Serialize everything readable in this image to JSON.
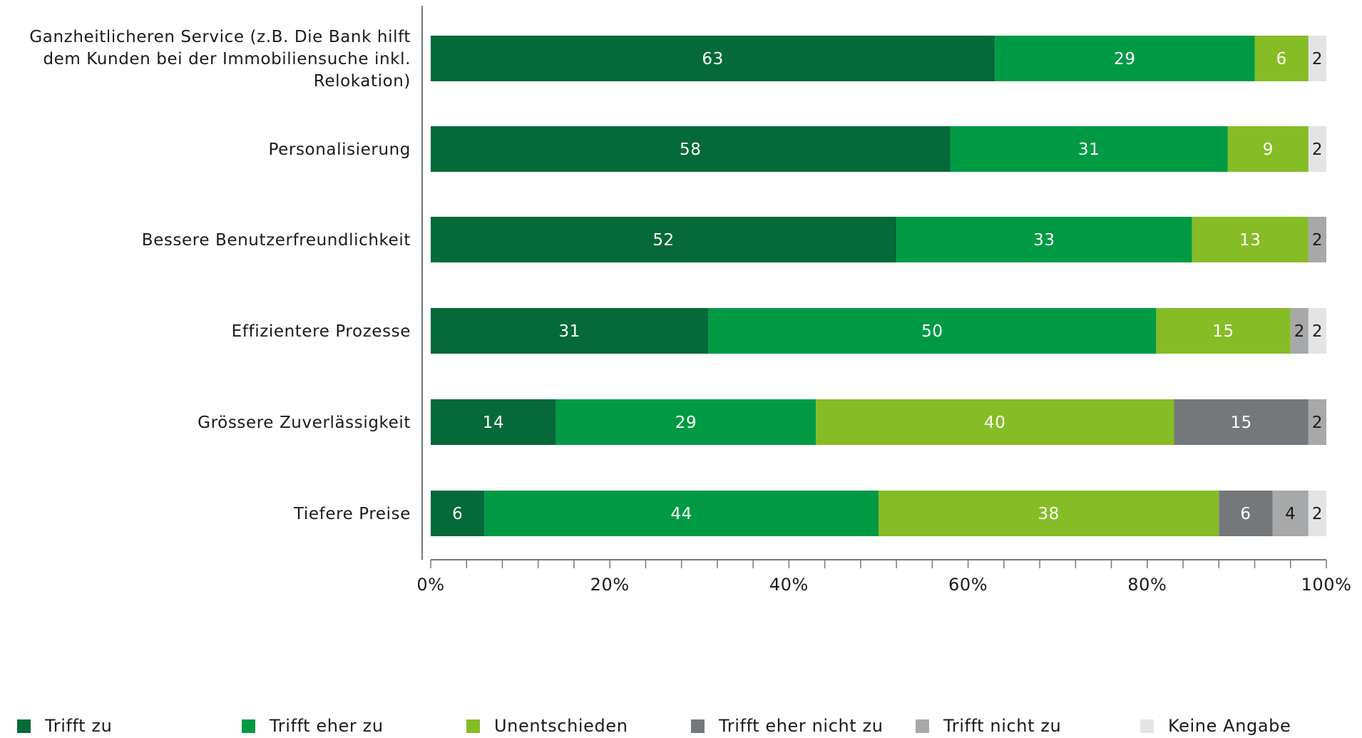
{
  "chart_data": {
    "type": "bar",
    "orientation": "horizontal",
    "stacked": true,
    "categories": [
      [
        "Ganzheitlicheren Service (z.B. Die Bank hilft",
        "dem Kunden bei der Immobiliensuche inkl.",
        "Relokation)"
      ],
      [
        "Personalisierung"
      ],
      [
        "Bessere Benutzerfreundlichkeit"
      ],
      [
        "Effizientere Prozesse"
      ],
      [
        "Grössere Zuverlässigkeit"
      ],
      [
        "Tiefere Preise"
      ]
    ],
    "series": [
      {
        "name": "Trifft zu",
        "color": "#05693a",
        "label_color": "#ffffff",
        "values": [
          63,
          58,
          52,
          31,
          14,
          6
        ]
      },
      {
        "name": "Trifft eher zu",
        "color": "#009a44",
        "label_color": "#ffffff",
        "values": [
          29,
          31,
          33,
          50,
          29,
          44
        ]
      },
      {
        "name": "Unentschieden",
        "color": "#86bc25",
        "label_color": "#ffffff",
        "values": [
          6,
          9,
          13,
          15,
          40,
          38
        ]
      },
      {
        "name": "Trifft eher nicht zu",
        "color": "#75787b",
        "label_color": "#ffffff",
        "values": [
          0,
          0,
          0,
          0,
          15,
          6
        ]
      },
      {
        "name": "Trifft nicht zu",
        "color": "#a7a8aa",
        "label_color": "#1a1a1a",
        "values": [
          0,
          0,
          2,
          2,
          2,
          4
        ]
      },
      {
        "name": "Keine Angabe",
        "color": "#e3e4e6",
        "label_color": "#1a1a1a",
        "values": [
          2,
          2,
          0,
          2,
          0,
          2
        ]
      }
    ],
    "xlim": [
      0,
      100
    ],
    "x_ticks": [
      "0%",
      "20%",
      "40%",
      "60%",
      "80%",
      "100%"
    ],
    "x_ticks_values": [
      0,
      20,
      40,
      60,
      80,
      100
    ],
    "minor_tick_step": 4,
    "legend_position": "bottom",
    "grid": false
  }
}
